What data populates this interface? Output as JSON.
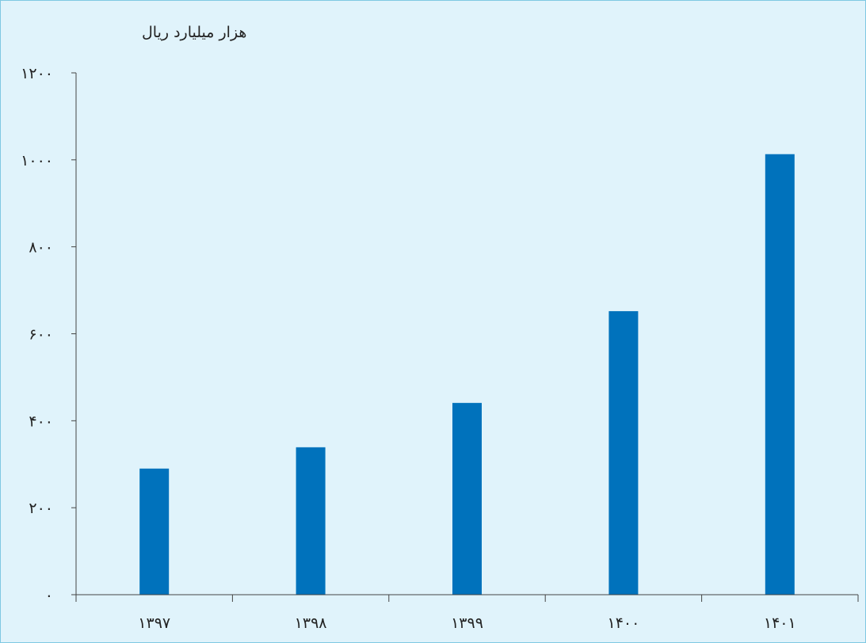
{
  "chart_data": {
    "type": "bar",
    "ylabel": "هزار میلیارد ریال",
    "categories": [
      "۱۳۹۷",
      "۱۳۹۸",
      "۱۳۹۹",
      "۱۴۰۰",
      "۱۴۰۱"
    ],
    "values": [
      290,
      339,
      441,
      652,
      1013
    ],
    "ylim": [
      0,
      1200
    ],
    "yticks": [
      0,
      200,
      400,
      600,
      800,
      1000,
      1200
    ],
    "ytick_labels": [
      "۰",
      "۲۰۰",
      "۴۰۰",
      "۶۰۰",
      "۸۰۰",
      "۱۰۰۰",
      "۱۲۰۰"
    ],
    "grid": false,
    "colors": {
      "bar": "#0072bc",
      "axis": "#444444",
      "background": "#e0f3fb",
      "border": "#7fc8e2"
    }
  }
}
